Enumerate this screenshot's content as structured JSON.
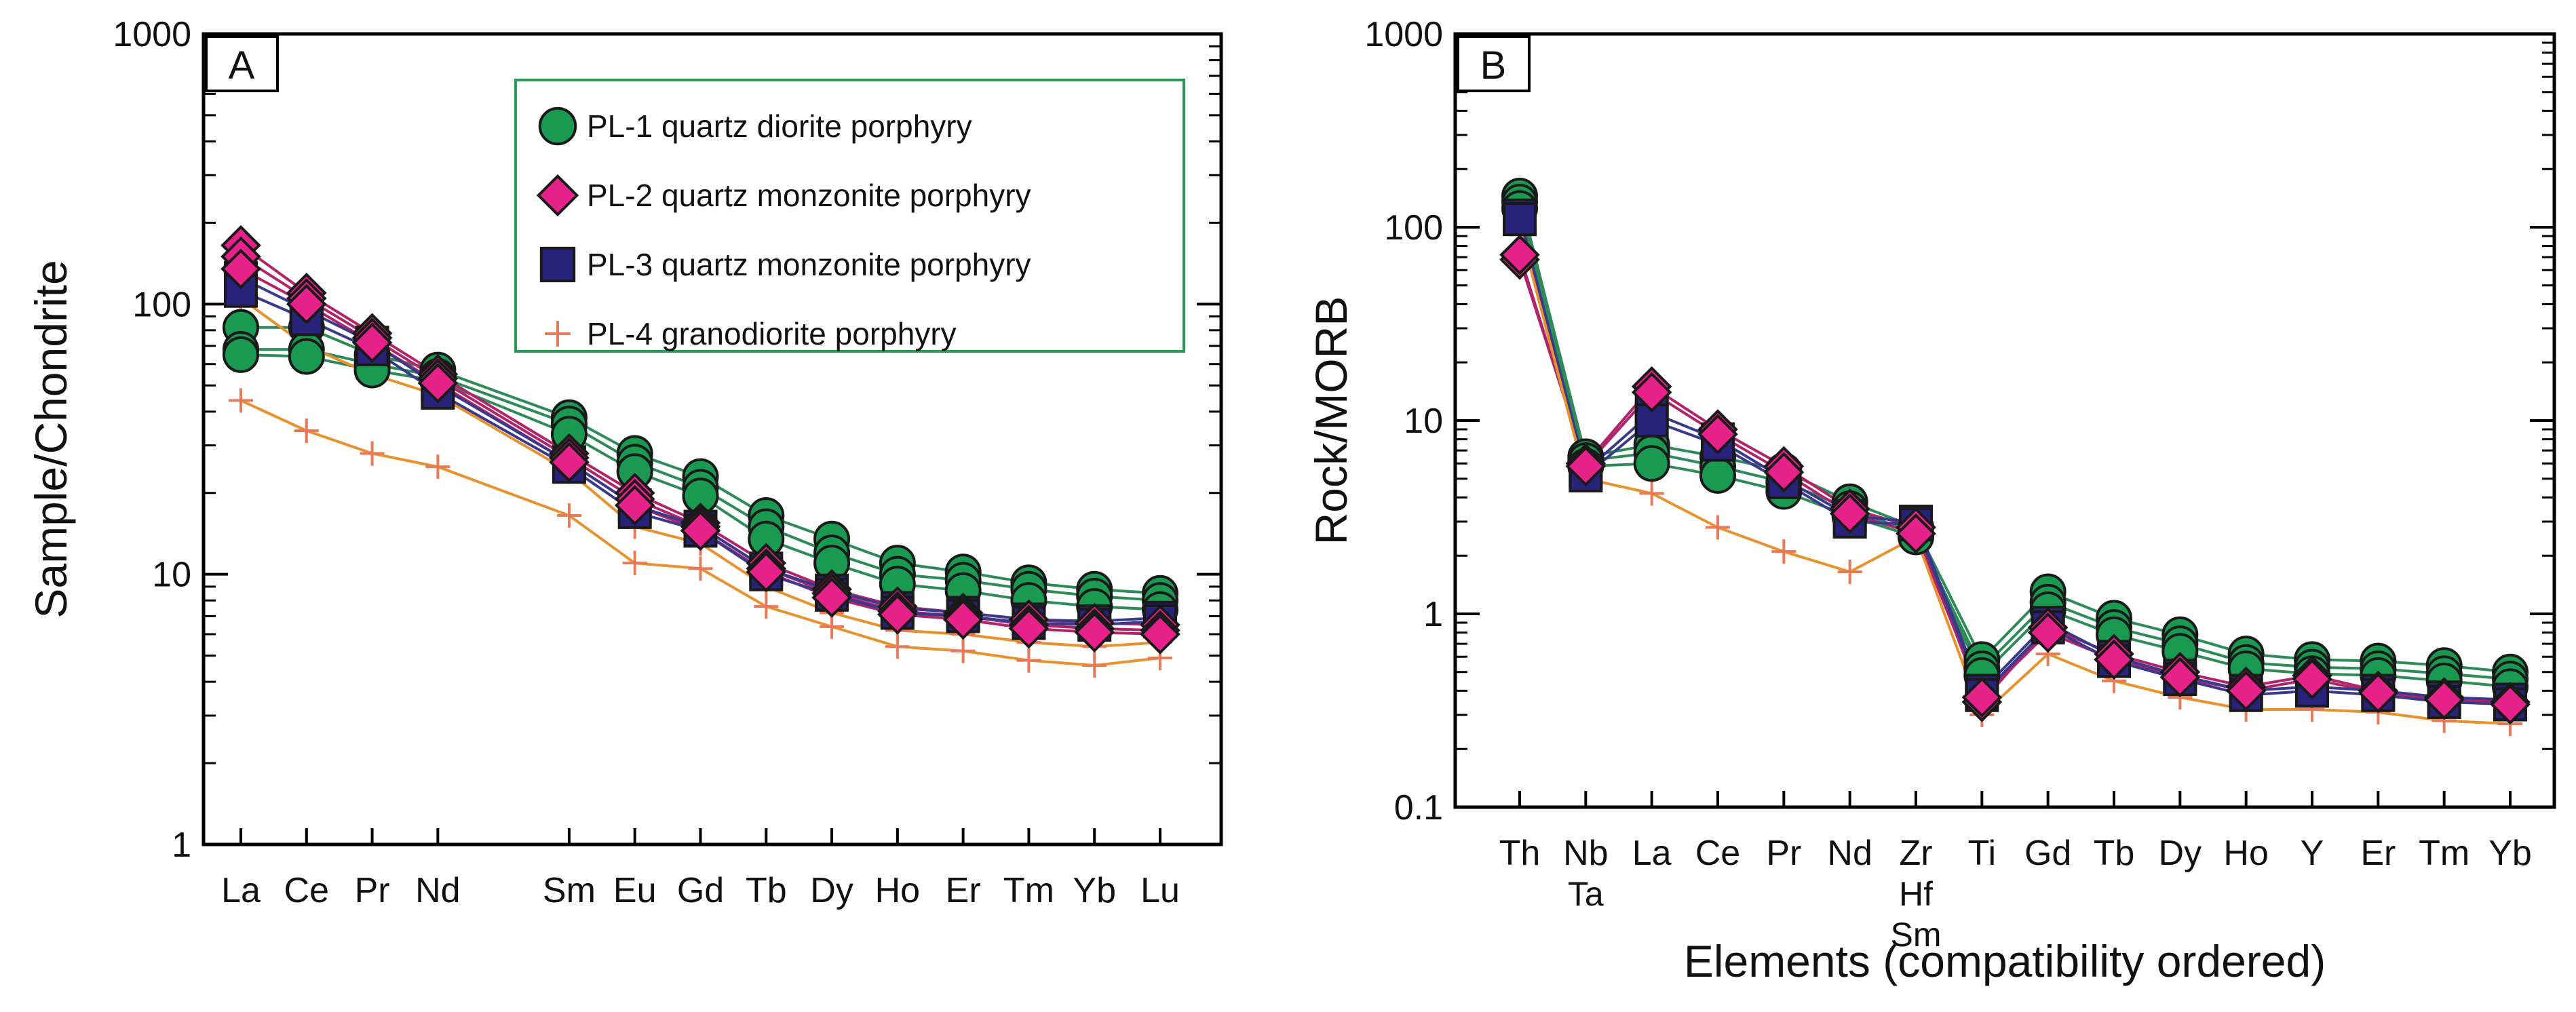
{
  "colors": {
    "pl1_line": "#2e8b57",
    "pl1_marker": "#1a9a50",
    "pl2_line": "#b0246a",
    "pl2_marker": "#e6228a",
    "pl3_line": "#3a3a8c",
    "pl3_marker": "#27237a",
    "pl4_line": "#e8922e",
    "pl4_marker": "#e87a5a",
    "legend_border": "#2a9a5a",
    "outline": "#1a1a1a"
  },
  "chart_data": [
    {
      "type": "line",
      "panel_label": "A",
      "ylabel": "Sample/Chondrite",
      "xlabel": "",
      "yscale": "log",
      "ylim": [
        1,
        1000
      ],
      "y_ticks": [
        "1",
        "10",
        "100",
        "1000"
      ],
      "categories": [
        "La",
        "Ce",
        "Pr",
        "Nd",
        "Sm",
        "Eu",
        "Gd",
        "Tb",
        "Dy",
        "Ho",
        "Er",
        "Tm",
        "Yb",
        "Lu"
      ],
      "x_index": [
        0,
        1,
        2,
        3,
        5,
        6,
        7,
        8,
        9,
        10,
        11,
        12,
        13,
        14
      ],
      "legend": [
        {
          "key": "PL-1",
          "label": "PL-1 quartz diorite porphyry",
          "marker": "circle"
        },
        {
          "key": "PL-2",
          "label": "PL-2 quartz monzonite porphyry",
          "marker": "diamond"
        },
        {
          "key": "PL-3",
          "label": "PL-3 quartz monzonite porphyry",
          "marker": "square"
        },
        {
          "key": "PL-4",
          "label": "PL-4  granodiorite porphyry",
          "marker": "plus"
        }
      ],
      "series": [
        {
          "name": "PL-1",
          "values": [
            82,
            82,
            65,
            57,
            38,
            28,
            23,
            16.5,
            13.5,
            11,
            10.2,
            9.3,
            8.8,
            8.5
          ]
        },
        {
          "name": "PL-1",
          "values": [
            68,
            68,
            60,
            54,
            36,
            26,
            21,
            15,
            12,
            10,
            9.5,
            8.8,
            8.3,
            8
          ]
        },
        {
          "name": "PL-1",
          "values": [
            65,
            64,
            57,
            52,
            33,
            24,
            19.5,
            13.5,
            11,
            9.2,
            8.7,
            8,
            7.6,
            7.4
          ]
        },
        {
          "name": "PL-2",
          "values": [
            165,
            110,
            78,
            55,
            28,
            20,
            15.5,
            11,
            8.8,
            7.6,
            7.2,
            6.8,
            6.6,
            6.5
          ]
        },
        {
          "name": "PL-2",
          "values": [
            150,
            105,
            75,
            53,
            27,
            19,
            15,
            10.5,
            8.5,
            7.3,
            7,
            6.5,
            6.3,
            6.2
          ]
        },
        {
          "name": "PL-2",
          "values": [
            135,
            100,
            72,
            51,
            26,
            18,
            14.5,
            10.2,
            8.2,
            7.1,
            6.8,
            6.3,
            6.1,
            6
          ]
        },
        {
          "name": "PL-3",
          "values": [
            125,
            95,
            72,
            50,
            26,
            18,
            15,
            10.5,
            8.7,
            7.5,
            7.2,
            6.8,
            6.7,
            6.9
          ]
        },
        {
          "name": "PL-3",
          "values": [
            112,
            88,
            68,
            47,
            25,
            17,
            14.5,
            10,
            8.4,
            7.2,
            7,
            6.6,
            6.5,
            6.7
          ]
        },
        {
          "name": "PL-4",
          "values": [
            44,
            34,
            28,
            25,
            16.5,
            11,
            10.5,
            7.6,
            6.4,
            5.4,
            5.2,
            4.8,
            4.6,
            4.9
          ]
        },
        {
          "name": "PL-4",
          "values": [
            105,
            70,
            55,
            46,
            24,
            15,
            13,
            9,
            7.2,
            6.2,
            6,
            5.6,
            5.4,
            5.6
          ]
        }
      ]
    },
    {
      "type": "line",
      "panel_label": "B",
      "ylabel": "Rock/MORB",
      "xlabel": "Elements (compatibility ordered)",
      "yscale": "log",
      "ylim": [
        0.1,
        1000
      ],
      "y_ticks": [
        "0.1",
        "1",
        "10",
        "100",
        "1000"
      ],
      "categories": [
        "Th",
        "Nb",
        "La",
        "Ce",
        "Pr",
        "Nd",
        "Zr",
        "Ti",
        "Gd",
        "Tb",
        "Dy",
        "Ho",
        "Y",
        "Er",
        "Tm",
        "Yb"
      ],
      "sub_categories": [
        {
          "index": 1,
          "labels": [
            "Ta"
          ]
        },
        {
          "index": 6,
          "labels": [
            "Hf",
            "Sm"
          ]
        }
      ],
      "series": [
        {
          "name": "PL-1",
          "values": [
            145,
            6.5,
            7.5,
            6.5,
            5.5,
            3.8,
            2.8,
            0.58,
            1.3,
            0.95,
            0.78,
            0.62,
            0.58,
            0.57,
            0.54,
            0.5
          ]
        },
        {
          "name": "PL-1",
          "values": [
            135,
            6.2,
            6.8,
            5.8,
            4.8,
            3.5,
            2.6,
            0.52,
            1.15,
            0.85,
            0.7,
            0.56,
            0.53,
            0.52,
            0.49,
            0.46
          ]
        },
        {
          "name": "PL-1",
          "values": [
            125,
            5.8,
            6,
            5.2,
            4.3,
            3.2,
            2.5,
            0.48,
            1.05,
            0.78,
            0.64,
            0.52,
            0.49,
            0.48,
            0.45,
            0.42
          ]
        },
        {
          "name": "PL-2",
          "values": [
            68,
            6,
            15,
            9,
            5.8,
            3.5,
            2.8,
            0.35,
            0.85,
            0.62,
            0.5,
            0.42,
            0.48,
            0.4,
            0.37,
            0.35
          ]
        },
        {
          "name": "PL-2",
          "values": [
            72,
            5.8,
            14,
            8.5,
            5.4,
            3.3,
            2.6,
            0.37,
            0.8,
            0.58,
            0.47,
            0.4,
            0.46,
            0.39,
            0.36,
            0.34
          ]
        },
        {
          "name": "PL-3",
          "values": [
            115,
            5.5,
            11,
            8,
            5,
            3.2,
            3,
            0.4,
            0.9,
            0.6,
            0.48,
            0.4,
            0.42,
            0.4,
            0.37,
            0.36
          ]
        },
        {
          "name": "PL-3",
          "values": [
            110,
            5.2,
            10,
            7.5,
            4.8,
            3,
            2.9,
            0.38,
            0.85,
            0.57,
            0.46,
            0.38,
            0.4,
            0.38,
            0.35,
            0.34
          ]
        },
        {
          "name": "PL-4",
          "values": [
            100,
            5,
            4.2,
            2.8,
            2.1,
            1.65,
            2.5,
            0.3,
            0.62,
            0.45,
            0.37,
            0.32,
            0.32,
            0.31,
            0.28,
            0.27
          ]
        }
      ]
    }
  ]
}
